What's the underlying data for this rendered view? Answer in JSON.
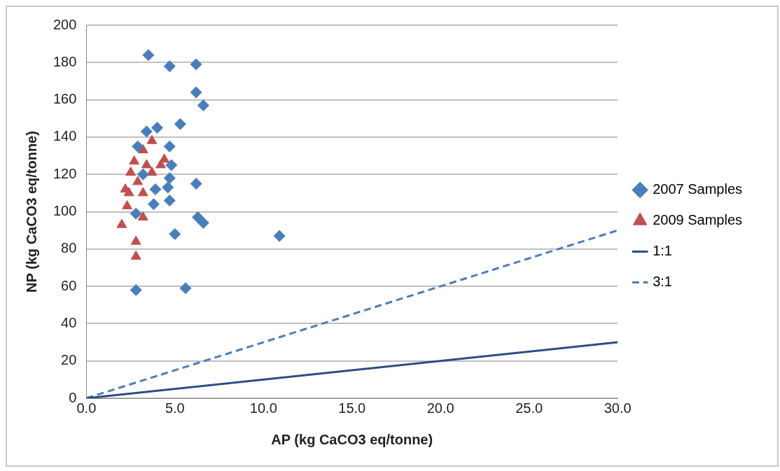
{
  "chart_data": {
    "type": "scatter",
    "xlabel": "AP (kg CaCO3 eq/tonne)",
    "ylabel": "NP (kg CaCO3 eq/tonne)",
    "xlim": [
      0,
      30
    ],
    "xticks": [
      {
        "value": 0,
        "label": "0.0"
      },
      {
        "value": 5,
        "label": "5.0"
      },
      {
        "value": 10,
        "label": "10.0"
      },
      {
        "value": 15,
        "label": "15.0"
      },
      {
        "value": 20,
        "label": "20.0"
      },
      {
        "value": 25,
        "label": "25.0"
      },
      {
        "value": 30,
        "label": "30.0"
      }
    ],
    "ylim": [
      0,
      200
    ],
    "yticks": [
      0,
      20,
      40,
      60,
      80,
      100,
      120,
      140,
      160,
      180,
      200
    ],
    "grid": "y",
    "legend": "right",
    "series": [
      {
        "name": "2007 Samples",
        "marker": "diamond",
        "color": "#4a7ebb",
        "x": [
          3.5,
          4.7,
          6.2,
          6.2,
          6.6,
          5.3,
          4.0,
          3.4,
          4.7,
          2.9,
          4.8,
          4.7,
          4.6,
          4.7,
          3.8,
          6.2,
          6.3,
          6.6,
          5.0,
          2.8,
          2.8,
          5.6,
          10.9,
          3.2,
          3.9
        ],
        "values": [
          184,
          178,
          179,
          164,
          157,
          147,
          145,
          143,
          135,
          135,
          125,
          118,
          113,
          106,
          104,
          115,
          97,
          94,
          88,
          99,
          58,
          59,
          87,
          120,
          112
        ]
      },
      {
        "name": "2009 Samples",
        "marker": "triangle",
        "color": "#c0504d",
        "x": [
          2.8,
          2.8,
          2.0,
          3.2,
          2.3,
          2.4,
          3.7,
          3.2,
          2.7,
          3.4,
          4.2,
          2.9,
          2.2,
          3.2,
          3.7,
          2.5,
          4.4
        ],
        "values": [
          76,
          84,
          93,
          97,
          103,
          110,
          138,
          133,
          127,
          125,
          125,
          116,
          112,
          110,
          121,
          121,
          128
        ]
      },
      {
        "name": "1:1",
        "type": "line",
        "marker": "none",
        "line_style": "solid",
        "color": "#2c4d85",
        "x": [
          0,
          30
        ],
        "values": [
          0,
          30
        ]
      },
      {
        "name": "3:1",
        "type": "line",
        "marker": "none",
        "line_style": "dashed",
        "color": "#4a7ebb",
        "x": [
          0,
          30
        ],
        "values": [
          0,
          90
        ]
      }
    ]
  }
}
